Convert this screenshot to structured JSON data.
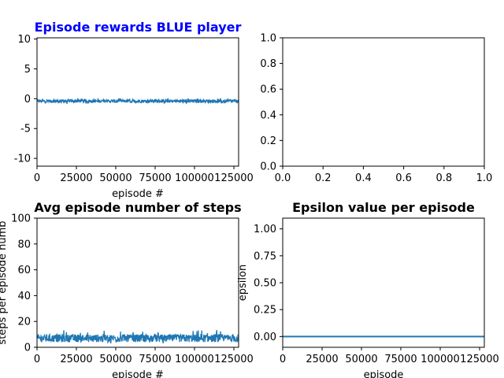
{
  "colors": {
    "series": "#1f77b4",
    "title_blue": "#0000ff",
    "title_black": "#000000"
  },
  "chart_data": [
    {
      "type": "line",
      "title": "Episode rewards BLUE player",
      "title_color": "#0000ff",
      "xlabel": "episode #",
      "ylabel": "",
      "xlim": [
        0,
        128000
      ],
      "ylim": [
        -11.3,
        10.2
      ],
      "xticks": [
        0,
        25000,
        50000,
        75000,
        100000,
        125000
      ],
      "yticks": [
        -10,
        -5,
        0,
        5,
        10
      ],
      "series": [
        {
          "x_range": [
            0,
            128000
          ],
          "y_center": -0.4,
          "y_band": [
            -0.9,
            0.1
          ]
        }
      ]
    },
    {
      "type": "line",
      "title": "",
      "xlabel": "",
      "ylabel": "",
      "xlim": [
        0,
        1
      ],
      "ylim": [
        0,
        1
      ],
      "xticks": [
        0.0,
        0.2,
        0.4,
        0.6,
        0.8,
        1.0
      ],
      "yticks": [
        0.0,
        0.2,
        0.4,
        0.6,
        0.8,
        1.0
      ],
      "series": []
    },
    {
      "type": "line",
      "title": "Avg episode number of steps",
      "title_color": "#000000",
      "xlabel": "episode #",
      "ylabel": "steps per episode numb",
      "xlim": [
        0,
        128000
      ],
      "ylim": [
        0,
        100
      ],
      "xticks": [
        0,
        25000,
        50000,
        75000,
        100000,
        125000
      ],
      "yticks": [
        0,
        20,
        40,
        60,
        80,
        100
      ],
      "series": [
        {
          "x_range": [
            0,
            128000
          ],
          "y_center": 7,
          "y_band": [
            3,
            14
          ]
        }
      ]
    },
    {
      "type": "line",
      "title": "Epsilon value per episode",
      "title_color": "#000000",
      "xlabel": "episode",
      "ylabel": "epsilon",
      "xlim": [
        0,
        128000
      ],
      "ylim": [
        -0.1,
        1.1
      ],
      "xticks": [
        0,
        25000,
        50000,
        75000,
        100000,
        125000
      ],
      "yticks": [
        0.0,
        0.25,
        0.5,
        0.75,
        1.0
      ],
      "series": [
        {
          "x_range": [
            0,
            128000
          ],
          "y_constant": 0.0
        }
      ]
    }
  ]
}
